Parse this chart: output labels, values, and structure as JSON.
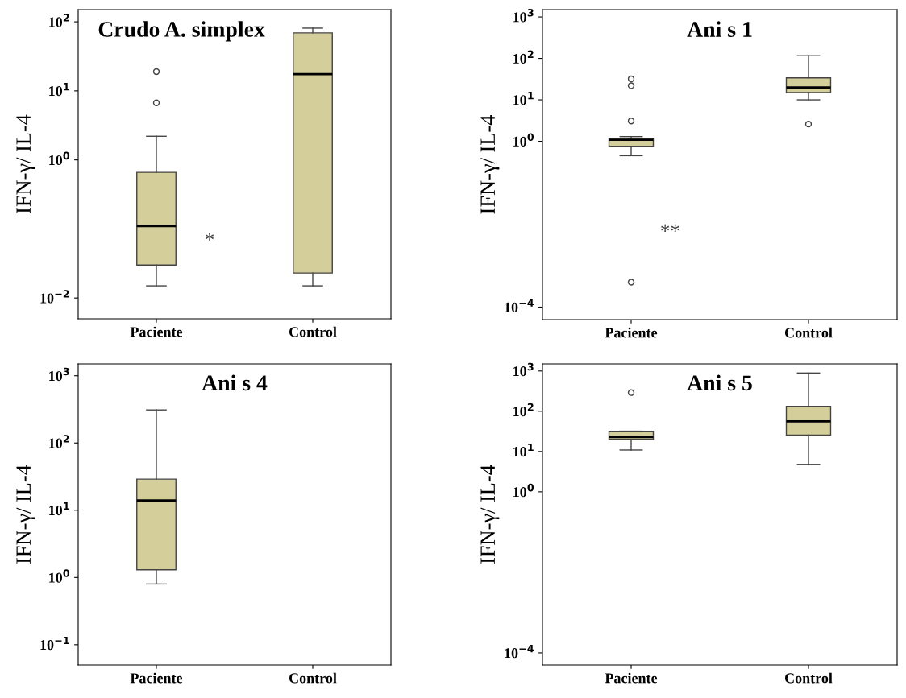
{
  "chart_data": [
    {
      "type": "box",
      "title": "Crudo A. simplex",
      "ylabel": "IFN-γ/ IL-4",
      "categories": [
        "Paciente",
        "Control"
      ],
      "log": true,
      "ylim": [
        0.005,
        150
      ],
      "yticks": [
        {
          "value": 100,
          "label": "10$^{2}$"
        },
        {
          "value": 10,
          "label": "10$^{1}$"
        },
        {
          "value": 1,
          "label": "10$^{0}$"
        },
        {
          "value": 0.01,
          "label": "10$^{−2}$"
        }
      ],
      "color": "#d4cf9a",
      "annotations": [
        "*"
      ],
      "boxes": [
        {
          "low": 0.015,
          "q1": 0.03,
          "median": 0.11,
          "q3": 0.66,
          "high": 2.2,
          "outliers": [
            6.7,
            19
          ]
        },
        {
          "low": 0.015,
          "q1": 0.023,
          "median": 17.5,
          "q3": 69,
          "high": 81
        }
      ]
    },
    {
      "type": "box",
      "title": "Ani s 1",
      "ylabel": "IFN-γ/ IL-4",
      "categories": [
        "Paciente",
        "Control"
      ],
      "log": true,
      "ylim": [
        5e-05,
        1500
      ],
      "yticks": [
        {
          "value": 1000,
          "label": "10$^{3}$"
        },
        {
          "value": 100,
          "label": "10$^{2}$"
        },
        {
          "value": 10,
          "label": "10$^{1}$"
        },
        {
          "value": 1,
          "label": "10$^{0}$"
        },
        {
          "value": 0.0001,
          "label": "10$^{−4}$"
        }
      ],
      "color": "#d4cf9a",
      "annotations": [
        "**"
      ],
      "boxes": [
        {
          "low": 0.45,
          "q1": 0.76,
          "median": 1.09,
          "q3": 1.18,
          "high": 1.3,
          "outliers": [
            0.0004,
            3.1,
            22,
            32
          ]
        },
        {
          "low": 10,
          "q1": 15,
          "median": 20,
          "q3": 34,
          "high": 116,
          "outliers": [
            2.6
          ]
        }
      ]
    },
    {
      "type": "box",
      "title": "Ani s 4",
      "ylabel": "IFN-γ/ IL-4",
      "categories": [
        "Paciente",
        "Control"
      ],
      "log": true,
      "ylim": [
        0.05,
        1500
      ],
      "yticks": [
        {
          "value": 1000,
          "label": "10$^{3}$"
        },
        {
          "value": 100,
          "label": "10$^{2}$"
        },
        {
          "value": 10,
          "label": "10$^{1}$"
        },
        {
          "value": 1,
          "label": "10$^{0}$"
        },
        {
          "value": 0.1,
          "label": "10$^{−1}$"
        }
      ],
      "color": "#d4cf9a",
      "boxes": [
        {
          "low": 0.8,
          "q1": 1.3,
          "median": 14,
          "q3": 29,
          "high": 310
        },
        null
      ]
    },
    {
      "type": "box",
      "title": "Ani s 5",
      "ylabel": "IFN-γ/ IL-4",
      "categories": [
        "Paciente",
        "Control"
      ],
      "log": true,
      "ylim": [
        5e-05,
        1500
      ],
      "yticks": [
        {
          "value": 1000,
          "label": "10$^{3}$"
        },
        {
          "value": 100,
          "label": "10$^{2}$"
        },
        {
          "value": 10,
          "label": "10$^{1}$"
        },
        {
          "value": 1,
          "label": "10$^{0}$"
        },
        {
          "value": 0.0001,
          "label": "10$^{−4}$"
        }
      ],
      "color": "#d4cf9a",
      "boxes": [
        {
          "low": 10.9,
          "q1": 20,
          "median": 23,
          "q3": 32,
          "high": 32,
          "outliers": [
            290
          ]
        },
        {
          "low": 4.8,
          "q1": 25.6,
          "median": 56,
          "q3": 132,
          "high": 890
        }
      ]
    }
  ]
}
